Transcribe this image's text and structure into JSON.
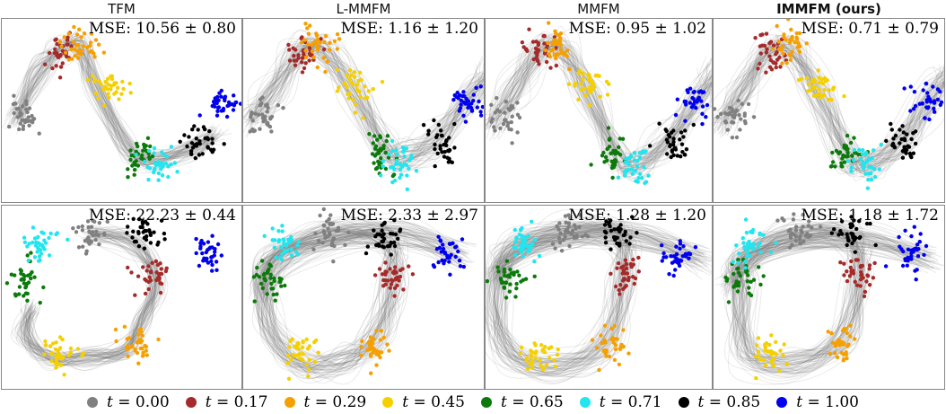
{
  "columns": [
    {
      "title": "TFM",
      "bold": false
    },
    {
      "title": "L-MMFM",
      "bold": false
    },
    {
      "title": "MMFM",
      "bold": false
    },
    {
      "title": "IMMFM (ours)",
      "bold": true
    }
  ],
  "rows": [
    {
      "mse": [
        "MSE: 10.56 ± 0.80",
        "MSE: 1.16 ± 1.20",
        "MSE: 0.95 ± 1.02",
        "MSE: 0.71 ± 0.79"
      ]
    },
    {
      "mse": [
        "MSE: 22.23 ± 0.44",
        "MSE: 2.33 ± 2.97",
        "MSE: 1.28 ± 1.20",
        "MSE: 1.18 ± 1.72"
      ]
    }
  ],
  "legend": [
    {
      "t": "t",
      "label": " = 0.00",
      "color": "#808080"
    },
    {
      "t": "t",
      "label": " = 0.17",
      "color": "#a52a2a"
    },
    {
      "t": "t",
      "label": " = 0.29",
      "color": "#f5a000"
    },
    {
      "t": "t",
      "label": " = 0.45",
      "color": "#f5d000"
    },
    {
      "t": "t",
      "label": " = 0.65",
      "color": "#0b7a0b"
    },
    {
      "t": "t",
      "label": " = 0.71",
      "color": "#22e5ee"
    },
    {
      "t": "t",
      "label": " = 0.85",
      "color": "#000000"
    },
    {
      "t": "t",
      "label": " = 1.00",
      "color": "#0000ee"
    }
  ],
  "chart_data": [
    {
      "type": "scatter",
      "name": "sine",
      "times": [
        0.0,
        0.17,
        0.29,
        0.45,
        0.65,
        0.71,
        0.85,
        1.0
      ],
      "cluster_centers": [
        [
          0.09,
          0.53
        ],
        [
          0.24,
          0.17
        ],
        [
          0.32,
          0.14
        ],
        [
          0.45,
          0.37
        ],
        [
          0.57,
          0.73
        ],
        [
          0.65,
          0.79
        ],
        [
          0.82,
          0.67
        ],
        [
          0.92,
          0.45
        ]
      ],
      "trajectories": "gray sample paths linking clusters in time order"
    },
    {
      "type": "scatter",
      "name": "loop",
      "times": [
        0.0,
        0.17,
        0.29,
        0.45,
        0.65,
        0.71,
        0.85,
        1.0
      ],
      "cluster_centers": [
        [
          0.36,
          0.15
        ],
        [
          0.62,
          0.38
        ],
        [
          0.55,
          0.76
        ],
        [
          0.24,
          0.8
        ],
        [
          0.1,
          0.4
        ],
        [
          0.17,
          0.21
        ],
        [
          0.59,
          0.16
        ],
        [
          0.85,
          0.26
        ]
      ],
      "trajectories": "gray sample paths forming a loop through the clusters"
    }
  ]
}
